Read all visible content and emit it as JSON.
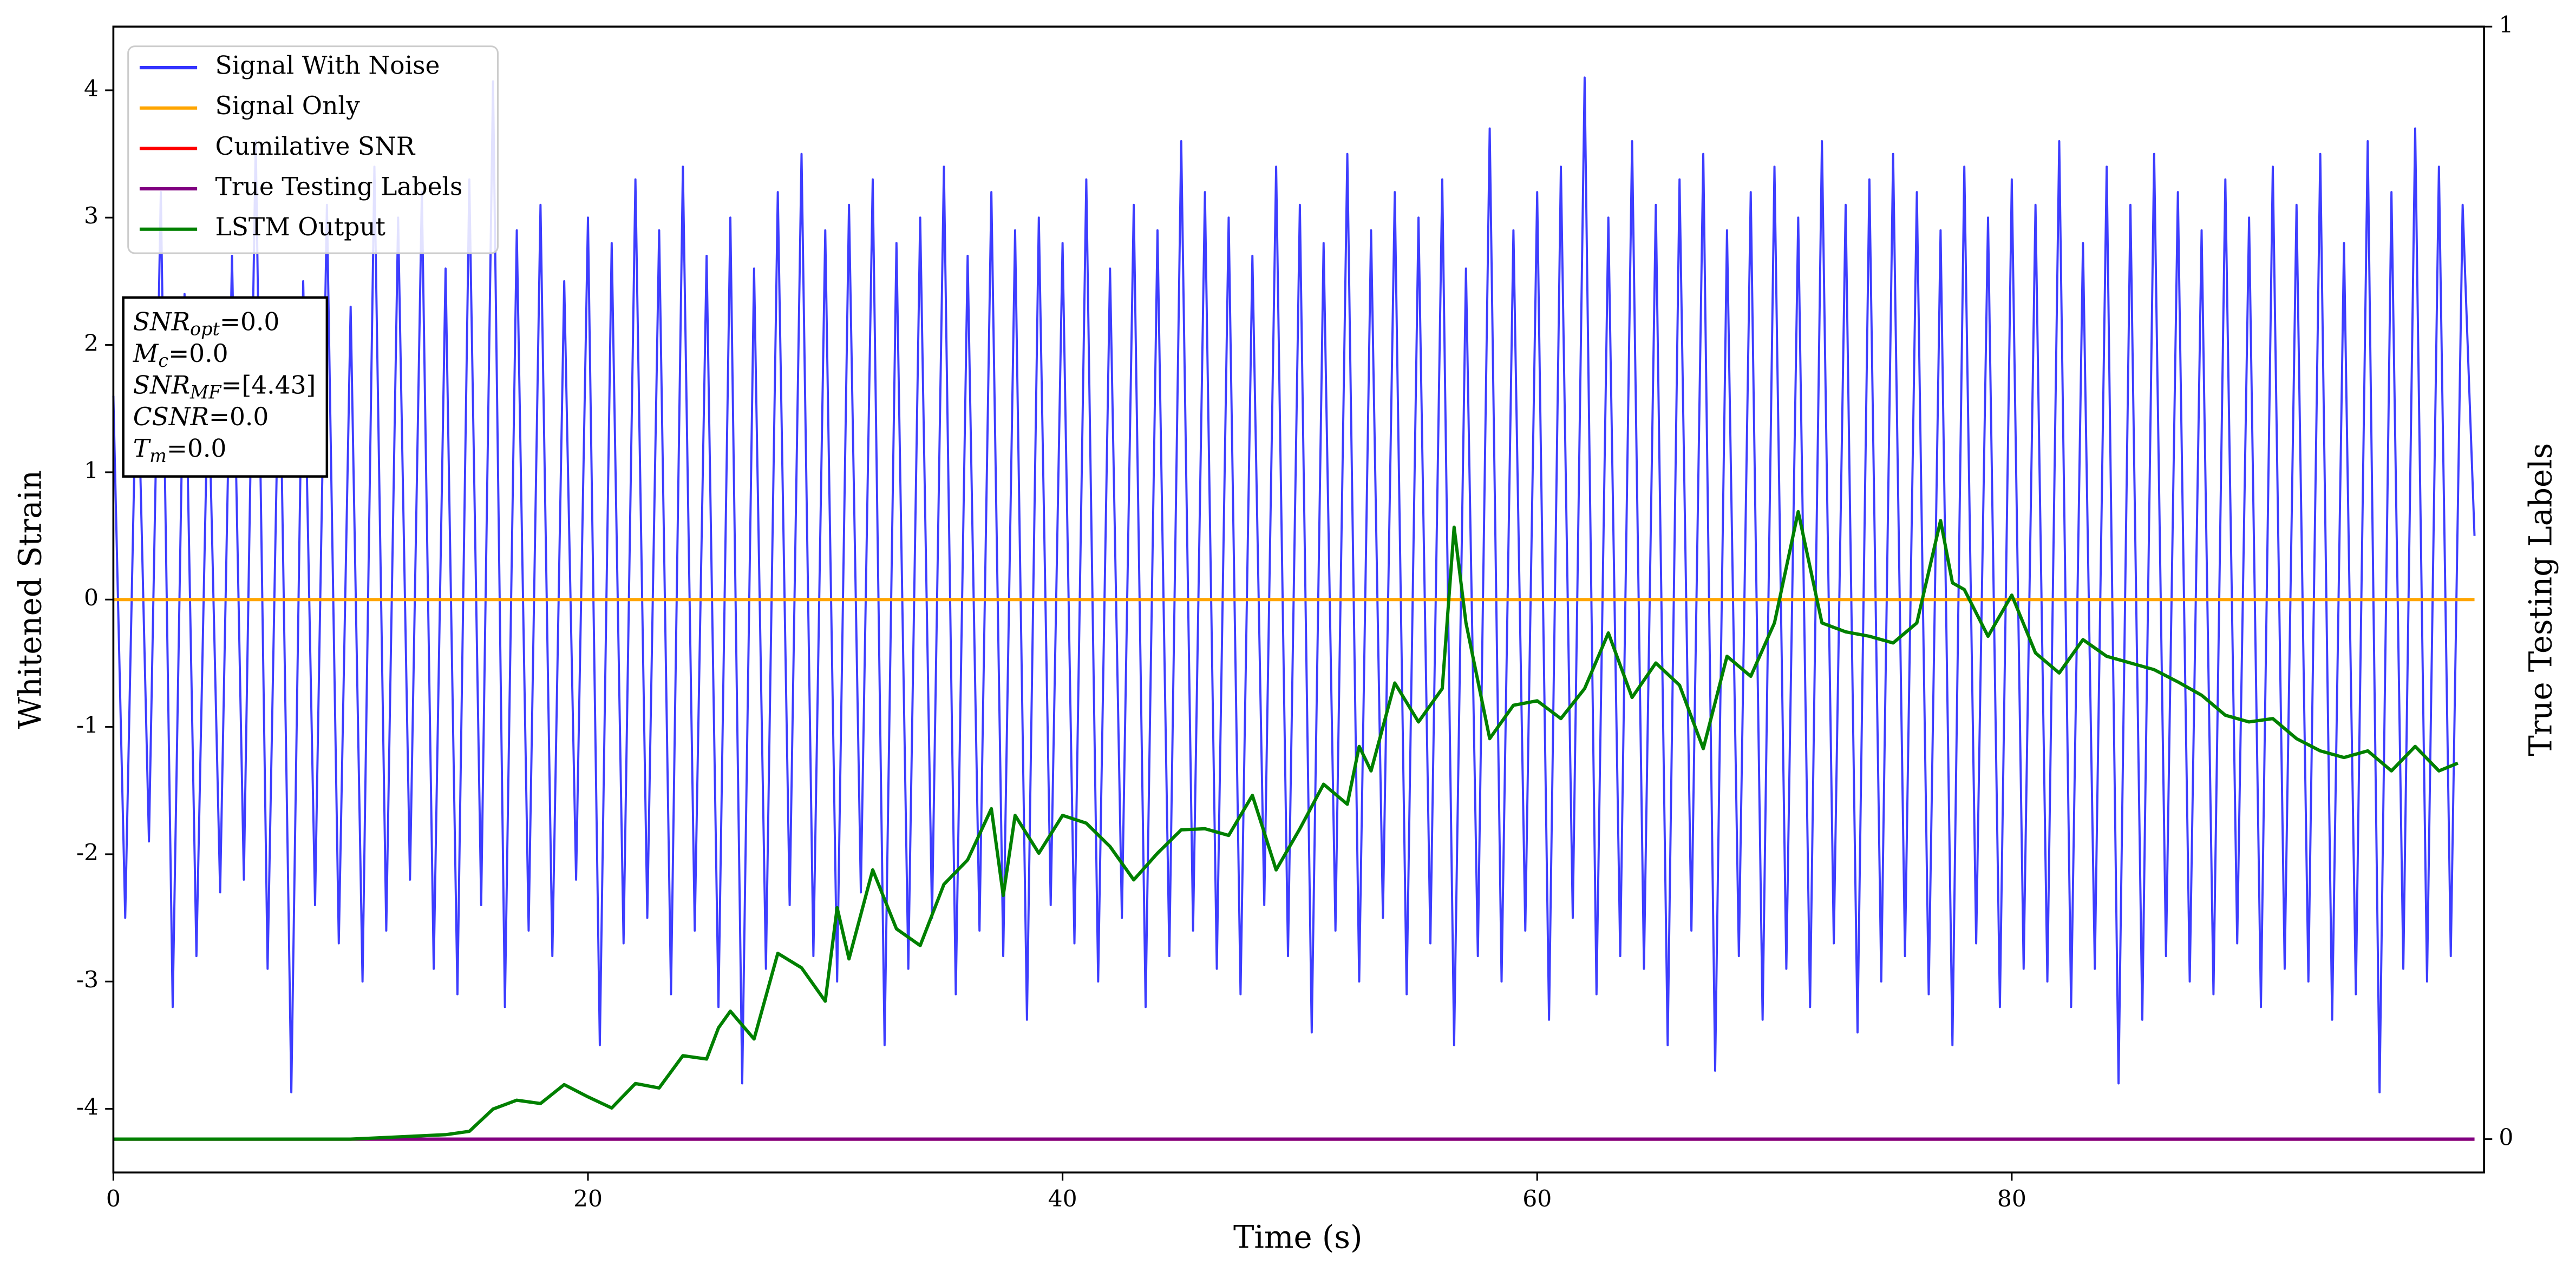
{
  "chart_data": {
    "type": "line",
    "xlabel": "Time (s)",
    "ylabel": "Whitened Strain",
    "y2label": "True Testing Labels",
    "xlim": [
      0,
      99.9
    ],
    "ylim": [
      -4.5,
      4.5
    ],
    "y2lim": [
      -0.03,
      1.0
    ],
    "xticks": [
      0,
      20,
      40,
      60,
      80
    ],
    "yticks": [
      -4,
      -3,
      -2,
      -1,
      0,
      1,
      2,
      3,
      4
    ],
    "y2ticks": [
      0,
      1
    ],
    "legend": "upper left",
    "annotation": [
      {
        "symbol": "SNR",
        "subscript": "opt",
        "text": "=0.0"
      },
      {
        "symbol": "M",
        "subscript": "c",
        "text": "=0.0"
      },
      {
        "symbol": "SNR",
        "subscript": "MF",
        "text": "=[4.43]"
      },
      {
        "symbol": "CSNR",
        "text": "=0.0"
      },
      {
        "symbol": "T",
        "subscript": "m",
        "text": "=0.0"
      }
    ],
    "series": [
      {
        "name": "Signal With Noise",
        "color": "#3333ff",
        "x": [
          0,
          0.5,
          1,
          1.5,
          2,
          2.5,
          3,
          3.5,
          4,
          4.5,
          5,
          5.5,
          6,
          6.5,
          7,
          7.5,
          8,
          8.5,
          9,
          9.5,
          10,
          10.5,
          11,
          11.5,
          12,
          12.5,
          13,
          13.5,
          14,
          14.5,
          15,
          15.5,
          16,
          16.5,
          17,
          17.5,
          18,
          18.5,
          19,
          19.5,
          20,
          20.5,
          21,
          21.5,
          22,
          22.5,
          23,
          23.5,
          24,
          24.5,
          25,
          25.5,
          26,
          26.5,
          27,
          27.5,
          28,
          28.5,
          29,
          29.5,
          30,
          30.5,
          31,
          31.5,
          32,
          32.5,
          33,
          33.5,
          34,
          34.5,
          35,
          35.5,
          36,
          36.5,
          37,
          37.5,
          38,
          38.5,
          39,
          39.5,
          40,
          40.5,
          41,
          41.5,
          42,
          42.5,
          43,
          43.5,
          44,
          44.5,
          45,
          45.5,
          46,
          46.5,
          47,
          47.5,
          48,
          48.5,
          49,
          49.5,
          50,
          50.5,
          51,
          51.5,
          52,
          52.5,
          53,
          53.5,
          54,
          54.5,
          55,
          55.5,
          56,
          56.5,
          57,
          57.5,
          58,
          58.5,
          59,
          59.5,
          60,
          60.5,
          61,
          61.5,
          62,
          62.5,
          63,
          63.5,
          64,
          64.5,
          65,
          65.5,
          66,
          66.5,
          67,
          67.5,
          68,
          68.5,
          69,
          69.5,
          70,
          70.5,
          71,
          71.5,
          72,
          72.5,
          73,
          73.5,
          74,
          74.5,
          75,
          75.5,
          76,
          76.5,
          77,
          77.5,
          78,
          78.5,
          79,
          79.5,
          80,
          80.5,
          81,
          81.5,
          82,
          82.5,
          83,
          83.5,
          84,
          84.5,
          85,
          85.5,
          86,
          86.5,
          87,
          87.5,
          88,
          88.5,
          89,
          89.5,
          90,
          90.5,
          91,
          91.5,
          92,
          92.5,
          93,
          93.5,
          94,
          94.5,
          95,
          95.5,
          96,
          96.5,
          97,
          97.5,
          98,
          98.5,
          99,
          99.5
        ],
        "values": [
          1.6,
          -2.5,
          2.1,
          -1.9,
          3.2,
          -3.2,
          2.4,
          -2.8,
          1.8,
          -2.3,
          2.7,
          -2.2,
          3.6,
          -2.9,
          2.2,
          -3.87,
          2.5,
          -2.4,
          3.1,
          -2.7,
          2.3,
          -3.0,
          3.4,
          -2.6,
          3.0,
          -2.2,
          3.2,
          -2.9,
          2.6,
          -3.1,
          3.3,
          -2.4,
          4.07,
          -3.2,
          2.9,
          -2.6,
          3.1,
          -2.8,
          2.5,
          -2.2,
          3.0,
          -3.5,
          2.8,
          -2.7,
          3.3,
          -2.5,
          2.9,
          -3.1,
          3.4,
          -2.6,
          2.7,
          -3.2,
          3.0,
          -3.8,
          2.6,
          -2.9,
          3.2,
          -2.4,
          3.5,
          -2.8,
          2.9,
          -3.0,
          3.1,
          -2.3,
          3.3,
          -3.5,
          2.8,
          -2.9,
          3.0,
          -2.5,
          3.4,
          -3.1,
          2.7,
          -2.6,
          3.2,
          -2.8,
          2.9,
          -3.3,
          3.0,
          -2.4,
          2.8,
          -2.7,
          3.3,
          -3.0,
          2.6,
          -2.5,
          3.1,
          -3.2,
          2.9,
          -2.8,
          3.6,
          -2.6,
          3.2,
          -2.9,
          3.0,
          -3.1,
          2.7,
          -2.4,
          3.4,
          -2.8,
          3.1,
          -3.4,
          2.8,
          -2.6,
          3.5,
          -3.0,
          2.9,
          -2.5,
          3.2,
          -3.1,
          3.0,
          -2.7,
          3.3,
          -3.5,
          2.6,
          -2.8,
          3.7,
          -3.0,
          2.9,
          -2.6,
          3.2,
          -3.3,
          3.4,
          -2.5,
          4.1,
          -3.1,
          3.0,
          -2.8,
          3.6,
          -2.9,
          3.1,
          -3.5,
          3.3,
          -2.6,
          3.5,
          -3.7,
          2.9,
          -2.8,
          3.2,
          -3.3,
          3.4,
          -2.9,
          3.0,
          -3.2,
          3.6,
          -2.7,
          3.1,
          -3.4,
          3.3,
          -3.0,
          3.5,
          -2.8,
          3.2,
          -3.1,
          2.9,
          -3.5,
          3.4,
          -2.7,
          3.0,
          -3.2,
          3.3,
          -2.9,
          3.1,
          -3.0,
          3.6,
          -3.2,
          2.8,
          -2.9,
          3.4,
          -3.8,
          3.1,
          -3.3,
          3.5,
          -2.8,
          3.2,
          -3.0,
          2.9,
          -3.1,
          3.3,
          -2.7,
          3.0,
          -3.2,
          3.4,
          -2.9,
          3.1,
          -3.0,
          3.5,
          -3.3,
          2.8,
          -3.1,
          3.6,
          -3.87,
          3.2,
          -2.9,
          3.7,
          -3.0,
          3.4,
          -2.8,
          3.1,
          0.5
        ]
      },
      {
        "name": "Signal Only",
        "color": "#ffa500",
        "x": [
          0,
          99.5
        ],
        "values": [
          0,
          0
        ]
      },
      {
        "name": "Cumilative SNR",
        "color": "#ff0000",
        "axis": "y2",
        "x": [
          0,
          99.5
        ],
        "values": [
          0,
          0
        ]
      },
      {
        "name": "True Testing Labels",
        "color": "#800080",
        "axis": "y2",
        "x": [
          0,
          99.5
        ],
        "values": [
          0,
          0
        ]
      },
      {
        "name": "LSTM Output",
        "color": "#008000",
        "axis": "y2",
        "x": [
          0,
          10,
          11,
          14,
          15,
          16,
          17,
          18,
          19,
          20,
          21,
          22,
          23,
          24,
          25,
          25.5,
          26,
          27,
          28,
          29,
          30,
          30.5,
          31,
          32,
          33,
          34,
          35,
          36,
          37,
          37.5,
          38,
          39,
          40,
          41,
          42,
          43,
          44,
          45,
          46,
          47,
          48,
          49,
          50,
          51,
          52,
          52.5,
          53,
          54,
          55,
          56,
          56.5,
          57,
          58,
          59,
          60,
          61,
          62,
          63,
          64,
          65,
          66,
          67,
          68,
          69,
          70,
          71,
          72,
          73,
          74,
          75,
          76,
          77,
          77.5,
          78,
          79,
          80,
          81,
          82,
          83,
          84,
          85,
          86,
          87,
          88,
          89,
          90,
          91,
          92,
          93,
          94,
          95,
          96,
          97,
          98,
          98.8
        ],
        "values": [
          0,
          0,
          0.001,
          0.004,
          0.007,
          0.027,
          0.035,
          0.032,
          0.049,
          0.038,
          0.028,
          0.05,
          0.046,
          0.075,
          0.072,
          0.1,
          0.115,
          0.09,
          0.167,
          0.154,
          0.124,
          0.208,
          0.162,
          0.242,
          0.189,
          0.174,
          0.229,
          0.251,
          0.297,
          0.219,
          0.291,
          0.257,
          0.291,
          0.284,
          0.263,
          0.233,
          0.257,
          0.278,
          0.279,
          0.273,
          0.309,
          0.242,
          0.279,
          0.319,
          0.301,
          0.353,
          0.331,
          0.41,
          0.375,
          0.405,
          0.55,
          0.464,
          0.36,
          0.39,
          0.394,
          0.378,
          0.405,
          0.455,
          0.397,
          0.428,
          0.408,
          0.351,
          0.434,
          0.416,
          0.464,
          0.564,
          0.464,
          0.456,
          0.452,
          0.446,
          0.464,
          0.556,
          0.5,
          0.494,
          0.452,
          0.489,
          0.437,
          0.419,
          0.449,
          0.434,
          0.428,
          0.422,
          0.411,
          0.399,
          0.381,
          0.375,
          0.378,
          0.36,
          0.349,
          0.343,
          0.349,
          0.331,
          0.353,
          0.331,
          0.338
        ]
      }
    ]
  }
}
